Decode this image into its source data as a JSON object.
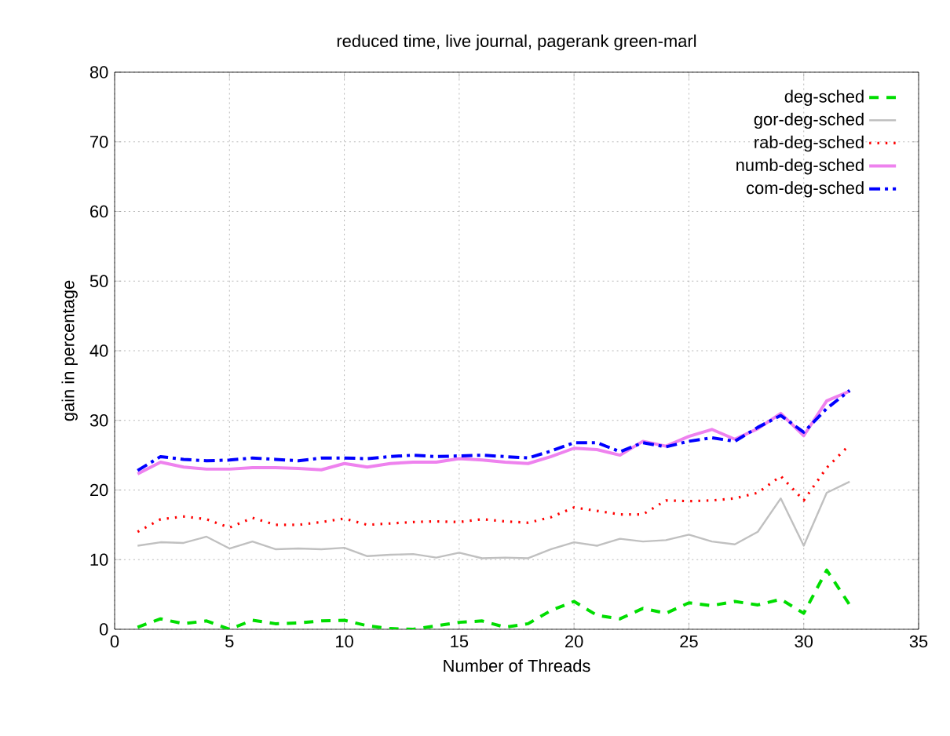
{
  "chart_data": {
    "type": "line",
    "title": "reduced time, live journal, pagerank green-marl",
    "xlabel": "Number of Threads",
    "ylabel": "gain in percentage",
    "x": [
      1,
      2,
      3,
      4,
      5,
      6,
      7,
      8,
      9,
      10,
      11,
      12,
      13,
      14,
      15,
      16,
      17,
      18,
      19,
      20,
      21,
      22,
      23,
      24,
      25,
      26,
      27,
      28,
      29,
      30,
      31,
      32
    ],
    "series": [
      {
        "name": "deg-sched",
        "color": "#00dd00",
        "line_style": "dashed",
        "values": [
          0.3,
          1.5,
          0.8,
          1.2,
          0,
          1.3,
          0.8,
          0.9,
          1.2,
          1.3,
          0.5,
          0.1,
          0,
          0.5,
          1,
          1.2,
          0.3,
          0.8,
          2.7,
          4,
          2,
          1.5,
          3,
          2.3,
          3.8,
          3.4,
          4,
          3.5,
          4.3,
          2.3,
          8.5,
          3.5
        ]
      },
      {
        "name": "gor-deg-sched",
        "color": "#c0c0c0",
        "line_style": "solid",
        "values": [
          12,
          12.5,
          12.4,
          13.3,
          11.6,
          12.6,
          11.5,
          11.6,
          11.5,
          11.7,
          10.5,
          10.7,
          10.8,
          10.3,
          11,
          10.2,
          10.3,
          10.2,
          11.5,
          12.5,
          12,
          13,
          12.6,
          12.8,
          13.6,
          12.6,
          12.2,
          14,
          18.8,
          12,
          19.6,
          21.2
        ]
      },
      {
        "name": "rab-deg-sched",
        "color": "#ff0000",
        "line_style": "dotted",
        "values": [
          14,
          15.8,
          16.2,
          15.8,
          14.6,
          16,
          15,
          15,
          15.4,
          15.9,
          15,
          15.2,
          15.4,
          15.5,
          15.4,
          15.8,
          15.5,
          15.3,
          16.1,
          17.5,
          17,
          16.5,
          16.5,
          18.5,
          18.4,
          18.5,
          18.8,
          19.6,
          22,
          18.5,
          23.2,
          26.5
        ]
      },
      {
        "name": "numb-deg-sched",
        "color": "#ee82ee",
        "line_style": "solid",
        "values": [
          22.3,
          24,
          23.3,
          23,
          23,
          23.2,
          23.2,
          23.1,
          22.9,
          23.8,
          23.3,
          23.8,
          24,
          24,
          24.5,
          24.3,
          24,
          23.8,
          24.8,
          26,
          25.8,
          25,
          27,
          26.3,
          27.7,
          28.7,
          27.3,
          28.8,
          31,
          27.8,
          32.8,
          34.2
        ]
      },
      {
        "name": "com-deg-sched",
        "color": "#0000ff",
        "line_style": "dashdot",
        "values": [
          22.8,
          24.8,
          24.4,
          24.2,
          24.3,
          24.6,
          24.4,
          24.2,
          24.6,
          24.6,
          24.5,
          24.8,
          25,
          24.8,
          24.9,
          25,
          24.8,
          24.6,
          25.6,
          26.8,
          26.8,
          25.5,
          26.8,
          26.2,
          27,
          27.5,
          27,
          29,
          30.7,
          28.3,
          31.7,
          34.3
        ]
      }
    ],
    "xlim": [
      0,
      35
    ],
    "ylim": [
      0,
      80
    ],
    "xticks": [
      0,
      5,
      10,
      15,
      20,
      25,
      30,
      35
    ],
    "yticks": [
      0,
      10,
      20,
      30,
      40,
      50,
      60,
      70,
      80
    ],
    "grid": true,
    "legend": "top right"
  }
}
